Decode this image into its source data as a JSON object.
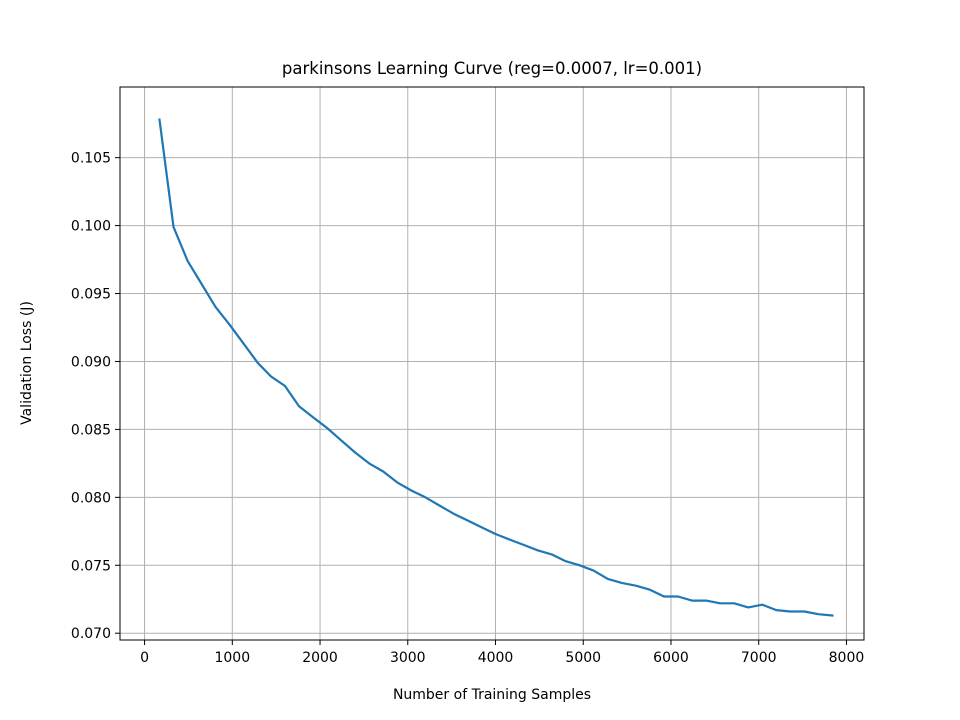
{
  "chart_data": {
    "type": "line",
    "title": "parkinsons Learning Curve (reg=0.0007, lr=0.001)",
    "xlabel": "Number of Training Samples",
    "ylabel": "Validation Loss (J)",
    "xlim": [
      -280,
      8200
    ],
    "ylim": [
      0.0695,
      0.1102
    ],
    "xticks": [
      0,
      1000,
      2000,
      3000,
      4000,
      5000,
      6000,
      7000,
      8000
    ],
    "yticks": [
      0.07,
      0.075,
      0.08,
      0.085,
      0.09,
      0.095,
      0.1,
      0.105
    ],
    "xtick_labels": [
      "0",
      "1000",
      "2000",
      "3000",
      "4000",
      "5000",
      "6000",
      "7000",
      "8000"
    ],
    "ytick_labels": [
      "0.070",
      "0.075",
      "0.080",
      "0.085",
      "0.090",
      "0.095",
      "0.100",
      "0.105"
    ],
    "grid": true,
    "line_color": "#1f77b4",
    "series": [
      {
        "x": [
          170,
          330,
          490,
          650,
          810,
          970,
          1130,
          1290,
          1440,
          1600,
          1760,
          1920,
          2080,
          2240,
          2400,
          2560,
          2720,
          2880,
          3040,
          3200,
          3360,
          3520,
          3680,
          3840,
          4000,
          4160,
          4320,
          4480,
          4640,
          4800,
          4960,
          5120,
          5280,
          5440,
          5600,
          5760,
          5920,
          6080,
          6240,
          6400,
          6560,
          6720,
          6880,
          7040,
          7200,
          7360,
          7520,
          7680,
          7840
        ],
        "values": [
          0.1078,
          0.0999,
          0.0974,
          0.0957,
          0.094,
          0.0927,
          0.0913,
          0.0899,
          0.0889,
          0.0882,
          0.0867,
          0.0859,
          0.0851,
          0.0842,
          0.0833,
          0.0825,
          0.0819,
          0.0811,
          0.0805,
          0.08,
          0.0794,
          0.0788,
          0.0783,
          0.0778,
          0.0773,
          0.0769,
          0.0765,
          0.0761,
          0.0758,
          0.0753,
          0.075,
          0.0746,
          0.074,
          0.0737,
          0.0735,
          0.0732,
          0.0727,
          0.0727,
          0.0724,
          0.0724,
          0.0722,
          0.0722,
          0.0719,
          0.0721,
          0.0717,
          0.0716,
          0.0716,
          0.0714,
          0.0713
        ]
      }
    ]
  }
}
